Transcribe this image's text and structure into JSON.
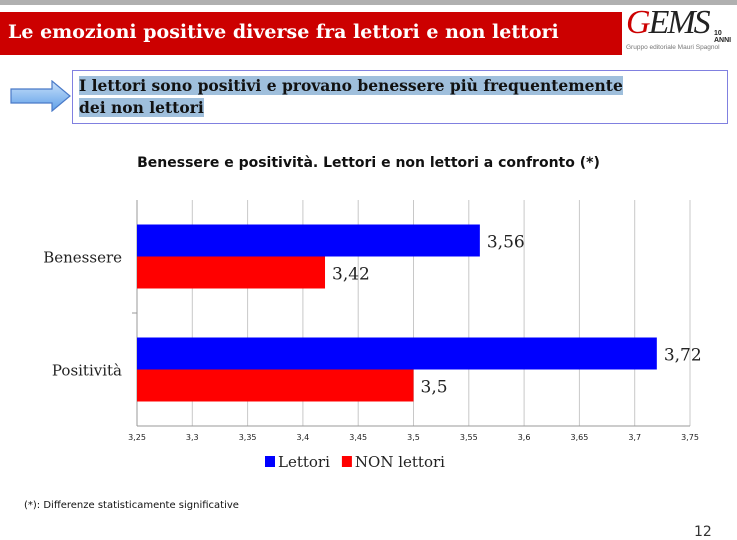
{
  "header": {
    "title": "Le emozioni positive diverse fra lettori e non lettori",
    "logo_text": "GEMS",
    "logo_subtitle": "Gruppo editoriale Mauri Spagnol",
    "logo_badge": "10 ANNI"
  },
  "message": {
    "line1": "I lettori sono positivi e provano benessere più frequentemente",
    "line2": "dei non lettori",
    "arrow_icon": "right-arrow-icon"
  },
  "chart_data": {
    "type": "bar",
    "orientation": "horizontal",
    "title": "Benessere e positività. Lettori e non lettori a confronto (*)",
    "categories": [
      "Benessere",
      "Positività"
    ],
    "series": [
      {
        "name": "Lettori",
        "values": [
          3.56,
          3.72
        ],
        "labels": [
          "3,56",
          "3,72"
        ],
        "color": "#0000ff"
      },
      {
        "name": "NON lettori",
        "values": [
          3.42,
          3.5
        ],
        "labels": [
          "3,42",
          "3,5"
        ],
        "color": "#ff0000"
      }
    ],
    "xlim": [
      3.25,
      3.75
    ],
    "ticks": [
      "3,25",
      "3,3",
      "3,35",
      "3,4",
      "3,45",
      "3,5",
      "3,55",
      "3,6",
      "3,65",
      "3,7",
      "3,75"
    ],
    "grid": true,
    "legend": "bottom"
  },
  "footnote": "(*): Differenze statisticamente significative",
  "page_number": "12"
}
